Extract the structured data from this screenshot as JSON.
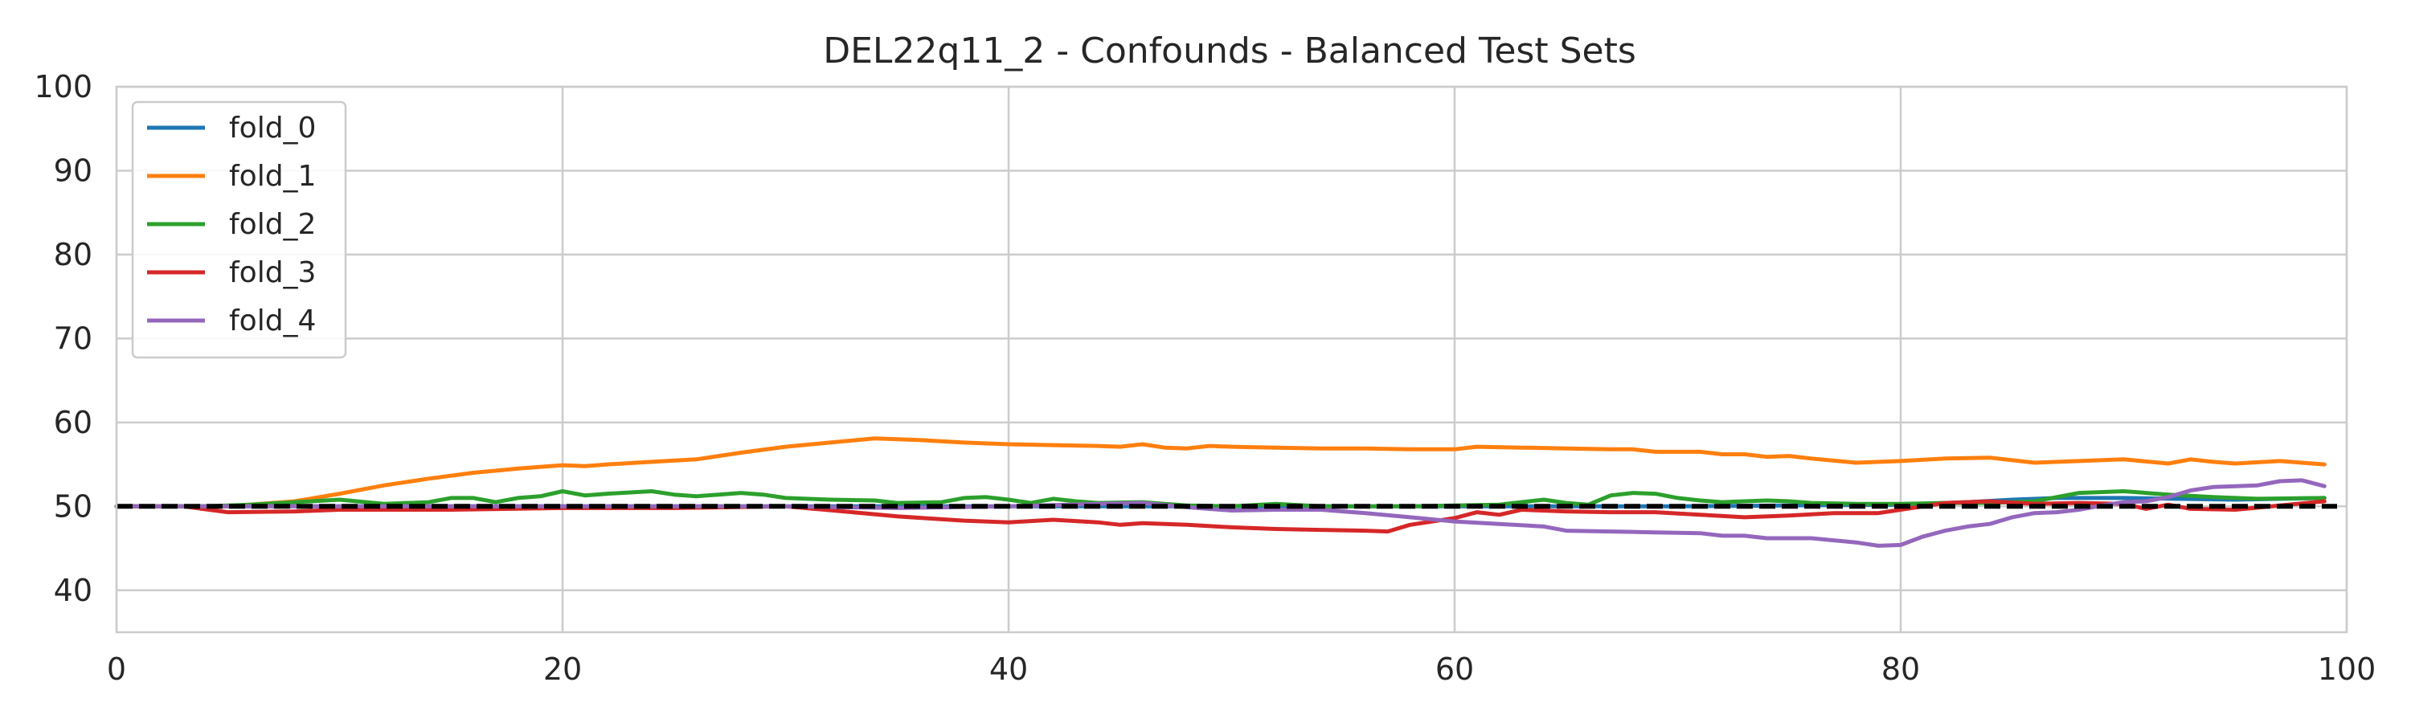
{
  "chart_data": {
    "type": "line",
    "title": "DEL22q11_2 - Confounds - Balanced Test Sets",
    "xlabel": "",
    "ylabel": "",
    "xlim": [
      0,
      100
    ],
    "ylim": [
      35,
      100
    ],
    "xticks": [
      0,
      20,
      40,
      60,
      80,
      100
    ],
    "yticks": [
      40,
      50,
      60,
      70,
      80,
      90,
      100
    ],
    "grid": true,
    "legend_position": "top-left",
    "reference_line": {
      "y": 50,
      "style": "dashed",
      "color": "#000000"
    },
    "series": [
      {
        "name": "fold_0",
        "color": "#1f77b4",
        "x": [
          0,
          10,
          20,
          30,
          40,
          50,
          60,
          70,
          80,
          83,
          85,
          87,
          90,
          95,
          99
        ],
        "y": [
          50,
          50,
          50,
          50,
          50,
          50,
          50,
          50,
          50.2,
          50.5,
          50.8,
          51,
          51,
          50.8,
          51
        ]
      },
      {
        "name": "fold_1",
        "color": "#ff7f0e",
        "x": [
          0,
          5,
          8,
          10,
          12,
          14,
          16,
          18,
          20,
          21,
          22,
          24,
          26,
          28,
          30,
          32,
          34,
          36,
          38,
          40,
          42,
          44,
          45,
          46,
          47,
          48,
          49,
          50,
          52,
          54,
          56,
          58,
          60,
          61,
          63,
          65,
          67,
          68,
          69,
          71,
          72,
          73,
          74,
          75,
          76,
          78,
          80,
          82,
          84,
          86,
          88,
          90,
          92,
          93,
          94,
          95,
          97,
          99
        ],
        "y": [
          50,
          50,
          50.6,
          51.5,
          52.5,
          53.3,
          54,
          54.5,
          54.9,
          54.8,
          55,
          55.3,
          55.6,
          56.4,
          57.1,
          57.6,
          58.1,
          57.9,
          57.6,
          57.4,
          57.3,
          57.2,
          57.1,
          57.4,
          57,
          56.9,
          57.2,
          57.1,
          57,
          56.9,
          56.9,
          56.8,
          56.8,
          57.1,
          57,
          56.9,
          56.8,
          56.8,
          56.5,
          56.5,
          56.2,
          56.2,
          55.9,
          56,
          55.7,
          55.2,
          55.4,
          55.7,
          55.8,
          55.2,
          55.4,
          55.6,
          55.1,
          55.6,
          55.3,
          55.1,
          55.4,
          55
        ]
      },
      {
        "name": "fold_2",
        "color": "#2ca02c",
        "x": [
          0,
          4,
          6,
          8,
          10,
          12,
          14,
          15,
          16,
          17,
          18,
          19,
          20,
          21,
          22,
          24,
          25,
          26,
          28,
          29,
          30,
          32,
          34,
          35,
          37,
          38,
          39,
          40,
          41,
          42,
          43,
          44,
          46,
          47,
          48,
          50,
          52,
          54,
          56,
          58,
          60,
          62,
          64,
          65,
          66,
          67,
          68,
          69,
          70,
          71,
          72,
          73,
          74,
          75,
          76,
          78,
          80,
          82,
          84,
          86,
          88,
          90,
          92,
          94,
          96,
          99
        ],
        "y": [
          50,
          50,
          50.2,
          50.5,
          50.8,
          50.3,
          50.5,
          51,
          51,
          50.5,
          51,
          51.2,
          51.8,
          51.3,
          51.5,
          51.8,
          51.4,
          51.2,
          51.6,
          51.4,
          51,
          50.8,
          50.7,
          50.4,
          50.5,
          51,
          51.1,
          50.8,
          50.4,
          50.9,
          50.6,
          50.4,
          50.5,
          50.3,
          50.1,
          50,
          50.3,
          50,
          50,
          50,
          50.1,
          50.2,
          50.8,
          50.4,
          50.2,
          51.3,
          51.6,
          51.5,
          51,
          50.7,
          50.5,
          50.6,
          50.7,
          50.6,
          50.4,
          50.3,
          50.3,
          50.4,
          50.4,
          50.6,
          51.6,
          51.8,
          51.4,
          51.1,
          50.9,
          51
        ]
      },
      {
        "name": "fold_3",
        "color": "#d62728",
        "x": [
          0,
          3,
          5,
          8,
          10,
          15,
          20,
          25,
          30,
          33,
          35,
          38,
          40,
          42,
          44,
          45,
          46,
          48,
          50,
          52,
          54,
          56,
          57,
          58,
          60,
          61,
          62,
          63,
          65,
          67,
          69,
          71,
          73,
          75,
          77,
          79,
          80,
          82,
          84,
          86,
          88,
          90,
          91,
          92,
          93,
          95,
          97,
          99
        ],
        "y": [
          50,
          50,
          49.3,
          49.4,
          49.6,
          49.6,
          49.8,
          49.8,
          50,
          49.3,
          48.8,
          48.3,
          48.1,
          48.4,
          48.1,
          47.8,
          48,
          47.8,
          47.5,
          47.3,
          47.2,
          47.1,
          47,
          47.8,
          48.6,
          49.3,
          49,
          49.6,
          49.4,
          49.3,
          49.3,
          49,
          48.7,
          48.9,
          49.2,
          49.2,
          49.6,
          50.4,
          50.6,
          50.3,
          50.4,
          50.3,
          49.7,
          50.2,
          49.7,
          49.6,
          50.1,
          50.6
        ]
      },
      {
        "name": "fold_4",
        "color": "#9467bd",
        "x": [
          0,
          10,
          20,
          30,
          35,
          40,
          44,
          46,
          48,
          50,
          52,
          54,
          56,
          58,
          60,
          62,
          64,
          65,
          67,
          69,
          71,
          72,
          73,
          74,
          76,
          78,
          79,
          80,
          81,
          82,
          83,
          84,
          85,
          86,
          87,
          88,
          89,
          90,
          91,
          92,
          93,
          94,
          96,
          97,
          98,
          99
        ],
        "y": [
          50,
          50,
          50,
          50,
          49.8,
          50,
          50.3,
          50.4,
          49.9,
          49.5,
          49.6,
          49.6,
          49.2,
          48.7,
          48.2,
          47.9,
          47.6,
          47.1,
          47,
          46.9,
          46.8,
          46.5,
          46.5,
          46.2,
          46.2,
          45.7,
          45.3,
          45.4,
          46.4,
          47.1,
          47.6,
          47.9,
          48.7,
          49.2,
          49.3,
          49.6,
          50.1,
          50.5,
          50.6,
          51.1,
          51.9,
          52.3,
          52.5,
          53,
          53.1,
          52.4
        ]
      }
    ]
  }
}
